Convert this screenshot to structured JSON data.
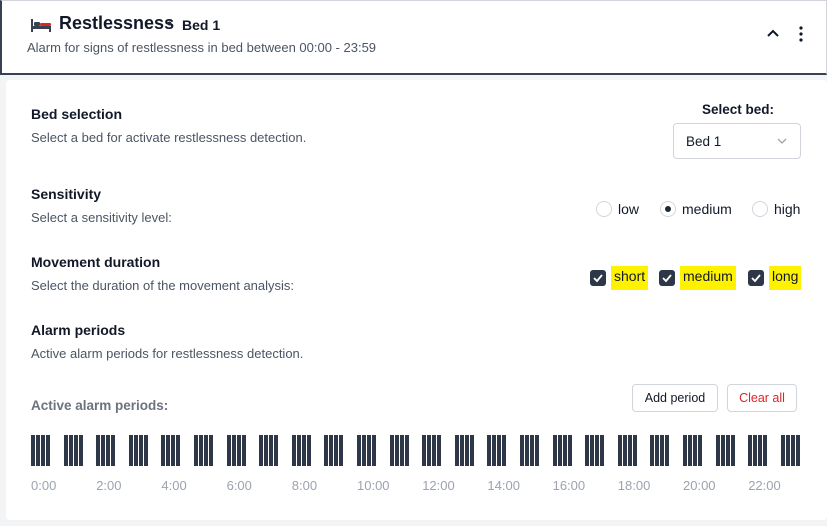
{
  "header": {
    "title": "Restlessness",
    "separator": "•",
    "bed_label": "Bed 1",
    "description": "Alarm for signs of restlessness in bed between 00:00 - 23:59"
  },
  "bed_selection": {
    "title": "Bed selection",
    "description": "Select a bed for activate restlessness detection.",
    "select_label": "Select bed:",
    "selected": "Bed 1"
  },
  "sensitivity": {
    "title": "Sensitivity",
    "description": "Select a sensitivity level:",
    "options": [
      {
        "label": "low",
        "checked": false
      },
      {
        "label": "medium",
        "checked": true
      },
      {
        "label": "high",
        "checked": false
      }
    ]
  },
  "movement_duration": {
    "title": "Movement duration",
    "description": "Select the duration of the movement analysis:",
    "options": [
      {
        "label": "short",
        "checked": true
      },
      {
        "label": "medium",
        "checked": true
      },
      {
        "label": "long",
        "checked": true
      }
    ]
  },
  "alarm_periods": {
    "title": "Alarm periods",
    "description": "Active alarm periods for restlessness detection.",
    "active_label": "Active alarm periods:",
    "add_button": "Add period",
    "clear_button": "Clear all",
    "ticks": [
      "0:00",
      "2:00",
      "4:00",
      "6:00",
      "8:00",
      "10:00",
      "12:00",
      "14:00",
      "16:00",
      "18:00",
      "20:00",
      "22:00"
    ]
  },
  "colors": {
    "accent": "#2d3748",
    "highlight": "#fff200",
    "danger": "#dc2626"
  }
}
